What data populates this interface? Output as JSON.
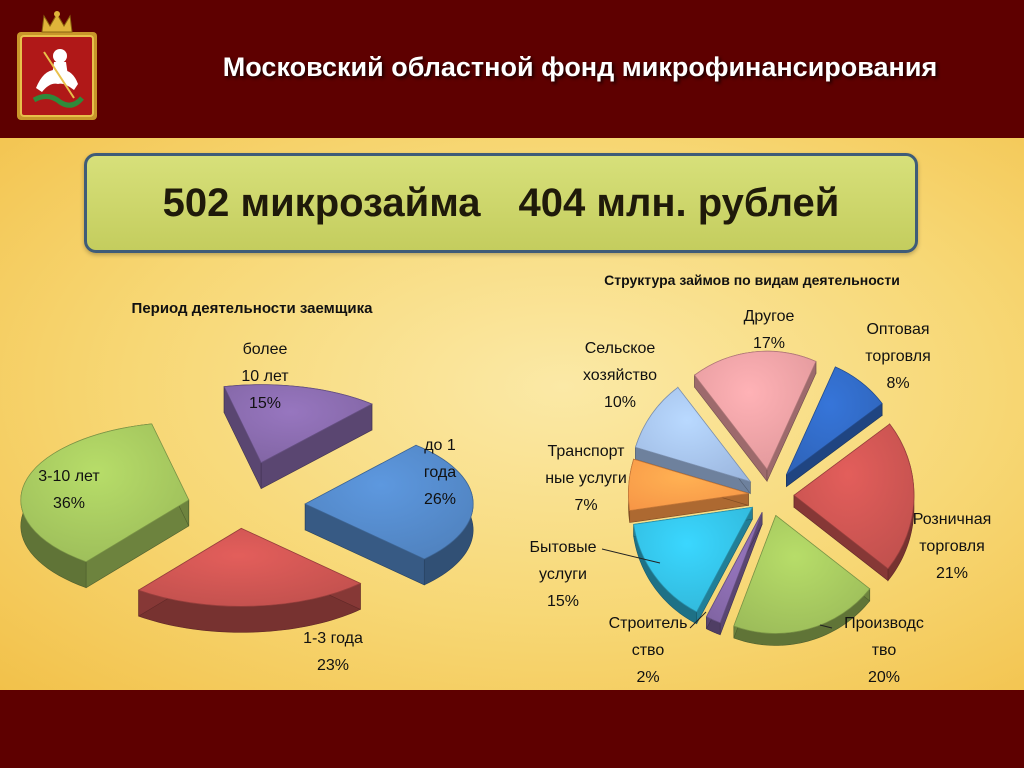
{
  "header": {
    "title": "Московский областной фонд микрофинансирования"
  },
  "banner": {
    "loans": "502 микрозайма",
    "amount": "404 млн. рублей"
  },
  "colors": {
    "blue": "#4f81bd",
    "red": "#c0504d",
    "green": "#9bbb59",
    "purple": "#8064a2",
    "aqua": "#31b6d8",
    "orange": "#f79646",
    "lightblue": "#9db8e0",
    "pink": "#e0979a",
    "darkblue": "#2e63b8"
  },
  "chart_data": [
    {
      "type": "pie",
      "title": "Период деятельности заемщика",
      "categories": [
        "до 1 года",
        "1-3 года",
        "3-10 лет",
        "более 10 лет"
      ],
      "values": [
        26,
        23,
        36,
        15
      ],
      "labels": [
        [
          "до 1",
          "года",
          "26%"
        ],
        [
          "1-3 года",
          "23%"
        ],
        [
          "3-10 лет",
          "36%"
        ],
        [
          "более",
          "10 лет",
          "15%"
        ]
      ],
      "unit": "%",
      "legend": "none"
    },
    {
      "type": "pie",
      "title": "Структура займов по видам деятельности",
      "categories": [
        "Оптовая торговля",
        "Розничная торговля",
        "Производство",
        "Строительство",
        "Бытовые услуги",
        "Транспортные услуги",
        "Сельское хозяйство",
        "Другое"
      ],
      "values": [
        8,
        21,
        20,
        2,
        15,
        7,
        10,
        17
      ],
      "labels": [
        [
          "Оптовая",
          "торговля",
          "8%"
        ],
        [
          "Розничная",
          "торговля",
          "21%"
        ],
        [
          "Производс",
          "тво",
          "20%"
        ],
        [
          "Строитель",
          "ство",
          "2%"
        ],
        [
          "Бытовые",
          "услуги",
          "15%"
        ],
        [
          "Транспорт",
          "ные услуги",
          "7%"
        ],
        [
          "Сельское",
          "хозяйство",
          "10%"
        ],
        [
          "Другое",
          "17%"
        ]
      ],
      "unit": "%",
      "legend": "none"
    }
  ]
}
